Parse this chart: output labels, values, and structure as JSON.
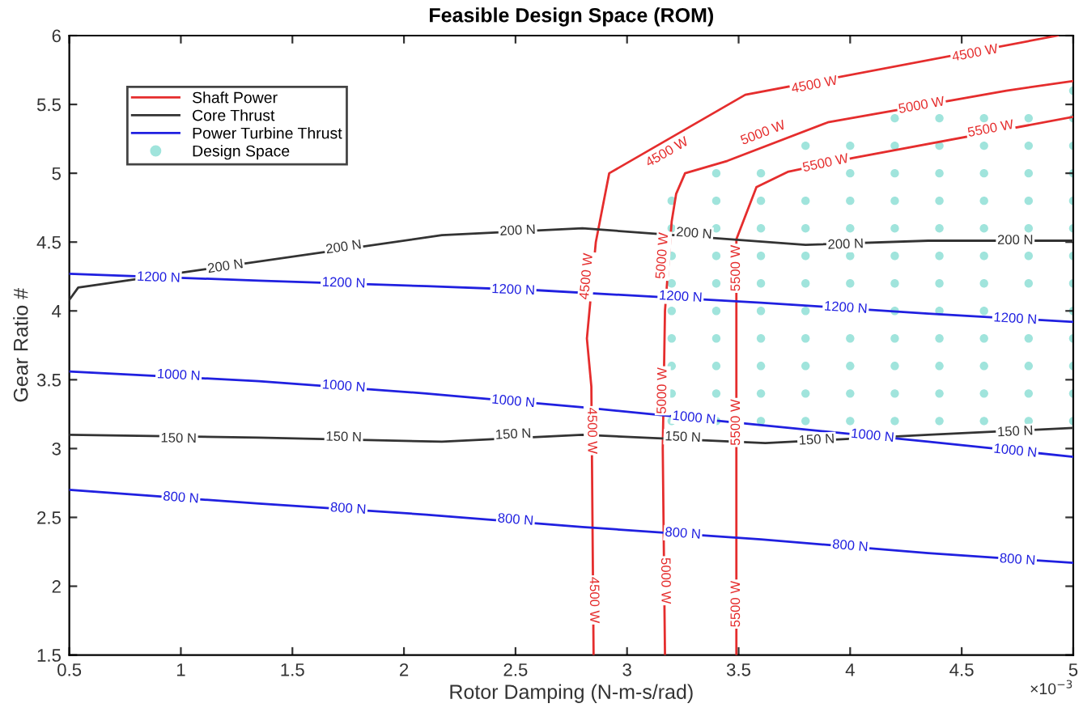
{
  "chart_data": {
    "type": "line",
    "title": "Feasible Design Space (ROM)",
    "xlabel": "Rotor Damping (N-m-s/rad)",
    "ylabel": "Gear Ratio #",
    "xlim": [
      0.5,
      5
    ],
    "ylim": [
      1.5,
      6
    ],
    "xticks": [
      0.5,
      1,
      1.5,
      2,
      2.5,
      3,
      3.5,
      4,
      4.5,
      5
    ],
    "yticks": [
      1.5,
      2,
      2.5,
      3,
      3.5,
      4,
      4.5,
      5,
      5.5,
      6
    ],
    "grid": false,
    "legend": "top left",
    "line_style": "solid",
    "series": [
      {
        "name": "Shaft Power",
        "color": "#e52d2d",
        "x": [
          2.85,
          2.84,
          2.82,
          2.86,
          2.92,
          3.53,
          4.93
        ],
        "values": [
          1.5,
          3.45,
          3.8,
          4.5,
          5.0,
          5.57,
          6.0
        ]
      },
      {
        "color": "#e52d2d",
        "x": [
          3.17,
          3.16,
          3.17,
          3.2,
          3.22,
          3.26,
          3.45,
          3.9,
          4.7,
          5
        ],
        "values": [
          1.5,
          3.0,
          4.0,
          4.65,
          4.85,
          5.0,
          5.09,
          5.37,
          5.6,
          5.67
        ]
      },
      {
        "color": "#e52d2d",
        "x": [
          3.49,
          3.49,
          3.49,
          3.58,
          3.72,
          4.01,
          5
        ],
        "values": [
          1.5,
          3.0,
          4.52,
          4.9,
          5.01,
          5.11,
          5.41
        ]
      },
      {
        "name": "Core Thrust",
        "color": "#333333",
        "x": [
          0.5,
          0.54,
          2.17,
          2.8,
          3.8,
          4.35,
          5
        ],
        "values": [
          4.08,
          4.17,
          4.55,
          4.6,
          4.48,
          4.51,
          4.51
        ]
      },
      {
        "color": "#333333",
        "x": [
          0.5,
          1.35,
          2.17,
          2.8,
          3.62,
          4.35,
          5
        ],
        "values": [
          3.1,
          3.08,
          3.05,
          3.1,
          3.04,
          3.1,
          3.15
        ]
      },
      {
        "name": "Power Turbine Thrust",
        "color": "#2020e0",
        "x": [
          0.5,
          1.35,
          2.1,
          2.6,
          3.6,
          4.35,
          5
        ],
        "values": [
          4.27,
          4.22,
          4.18,
          4.15,
          4.06,
          3.98,
          3.92
        ]
      },
      {
        "color": "#2020e0",
        "x": [
          0.5,
          1.35,
          2.1,
          2.8,
          3.6,
          4.35,
          5
        ],
        "values": [
          3.56,
          3.49,
          3.4,
          3.3,
          3.17,
          3.05,
          2.94
        ]
      },
      {
        "color": "#2020e0",
        "x": [
          0.5,
          1.35,
          2.1,
          2.8,
          3.6,
          4.35,
          5
        ],
        "values": [
          2.7,
          2.6,
          2.52,
          2.43,
          2.34,
          2.24,
          2.17
        ]
      },
      {
        "name": "Design Space",
        "type": "scatter",
        "marker": "circle",
        "color": "#a0e4dc",
        "x": [
          3.2,
          3.2,
          3.2,
          3.2,
          3.2,
          3.2,
          3.2,
          3.2,
          3.2,
          3.4,
          3.4,
          3.4,
          3.4,
          3.4,
          3.4,
          3.4,
          3.4,
          3.4,
          3.4,
          3.6,
          3.6,
          3.6,
          3.6,
          3.6,
          3.6,
          3.6,
          3.6,
          3.6,
          3.6,
          3.8,
          3.8,
          3.8,
          3.8,
          3.8,
          3.8,
          3.8,
          3.8,
          3.8,
          3.8,
          4.0,
          4.0,
          4.0,
          4.0,
          4.0,
          4.0,
          4.0,
          4.0,
          4.0,
          4.0,
          4.2,
          4.2,
          4.2,
          4.2,
          4.2,
          4.2,
          4.2,
          4.2,
          4.2,
          4.2,
          4.2,
          4.2,
          4.4,
          4.4,
          4.4,
          4.4,
          4.4,
          4.4,
          4.4,
          4.4,
          4.4,
          4.4,
          4.4,
          4.4,
          4.6,
          4.6,
          4.6,
          4.6,
          4.6,
          4.6,
          4.6,
          4.6,
          4.6,
          4.6,
          4.6,
          4.6,
          4.8,
          4.8,
          4.8,
          4.8,
          4.8,
          4.8,
          4.8,
          4.8,
          4.8,
          4.8,
          4.8,
          5.0,
          5.0,
          5.0,
          5.0,
          5.0,
          5.0,
          5.0,
          5.0,
          5.0,
          5.0,
          5.0,
          5.0,
          5.0
        ],
        "values": [
          3.2,
          3.4,
          3.6,
          3.8,
          4.0,
          4.2,
          4.4,
          4.6,
          4.8,
          3.2,
          3.4,
          3.6,
          3.8,
          4.0,
          4.2,
          4.4,
          4.6,
          4.8,
          5.0,
          3.2,
          3.4,
          3.6,
          3.8,
          4.0,
          4.2,
          4.4,
          4.6,
          4.8,
          5.0,
          3.2,
          3.4,
          3.6,
          3.8,
          4.0,
          4.2,
          4.4,
          4.6,
          4.8,
          5.2,
          3.2,
          3.4,
          3.6,
          3.8,
          4.2,
          4.4,
          4.6,
          4.8,
          5.0,
          5.2,
          3.2,
          3.4,
          3.6,
          3.8,
          4.0,
          4.2,
          4.4,
          4.6,
          4.8,
          5.0,
          5.2,
          5.4,
          3.2,
          3.4,
          3.6,
          3.8,
          4.0,
          4.2,
          4.4,
          4.6,
          4.8,
          5.0,
          5.2,
          5.4,
          3.2,
          3.4,
          3.6,
          3.8,
          4.0,
          4.2,
          4.4,
          4.6,
          4.8,
          5.0,
          5.2,
          5.4,
          3.2,
          3.4,
          3.6,
          3.8,
          4.2,
          4.4,
          4.6,
          4.8,
          5.0,
          5.2,
          5.4,
          3.2,
          3.4,
          3.6,
          3.8,
          4.0,
          4.2,
          4.4,
          4.6,
          4.8,
          5.0,
          5.2,
          5.4,
          5.6
        ]
      }
    ],
    "annotations": [
      {
        "text": "4500 W",
        "x": 2.85,
        "y": 1.9
      },
      {
        "text": "4500 W",
        "x": 2.84,
        "y": 3.13
      },
      {
        "text": "4500 W",
        "x": 2.82,
        "y": 4.25
      },
      {
        "text": "4500 W",
        "x": 3.18,
        "y": 5.15
      },
      {
        "text": "4500 W",
        "x": 3.84,
        "y": 5.64
      },
      {
        "text": "4500 W",
        "x": 4.56,
        "y": 5.87
      },
      {
        "text": "5000 W",
        "x": 3.17,
        "y": 2.04
      },
      {
        "text": "5000 W",
        "x": 3.16,
        "y": 3.42
      },
      {
        "text": "5000 W",
        "x": 3.16,
        "y": 4.4
      },
      {
        "text": "5000 W",
        "x": 3.61,
        "y": 5.29
      },
      {
        "text": "5000 W",
        "x": 4.32,
        "y": 5.49
      },
      {
        "text": "5500 W",
        "x": 3.49,
        "y": 1.87
      },
      {
        "text": "5500 W",
        "x": 3.49,
        "y": 3.19
      },
      {
        "text": "5500 W",
        "x": 3.49,
        "y": 4.31
      },
      {
        "text": "5500 W",
        "x": 3.89,
        "y": 5.07
      },
      {
        "text": "5500 W",
        "x": 4.63,
        "y": 5.32
      },
      {
        "text": "200 N",
        "x": 1.2,
        "y": 4.32
      },
      {
        "text": "200 N",
        "x": 1.73,
        "y": 4.46
      },
      {
        "text": "200 N",
        "x": 2.51,
        "y": 4.58
      },
      {
        "text": "200 N",
        "x": 3.3,
        "y": 4.56
      },
      {
        "text": "200 N",
        "x": 3.98,
        "y": 4.48
      },
      {
        "text": "200 N",
        "x": 4.74,
        "y": 4.51
      },
      {
        "text": "150 N",
        "x": 0.99,
        "y": 3.07
      },
      {
        "text": "150 N",
        "x": 1.73,
        "y": 3.08
      },
      {
        "text": "150 N",
        "x": 2.49,
        "y": 3.1
      },
      {
        "text": "150 N",
        "x": 3.25,
        "y": 3.08
      },
      {
        "text": "150 N",
        "x": 3.85,
        "y": 3.06
      },
      {
        "text": "150 N",
        "x": 4.74,
        "y": 3.12
      },
      {
        "text": "1200 N",
        "x": 0.9,
        "y": 4.24
      },
      {
        "text": "1200 N",
        "x": 1.73,
        "y": 4.2
      },
      {
        "text": "1200 N",
        "x": 2.49,
        "y": 4.15
      },
      {
        "text": "1200 N",
        "x": 3.24,
        "y": 4.1
      },
      {
        "text": "1200 N",
        "x": 3.98,
        "y": 4.02
      },
      {
        "text": "1200 N",
        "x": 4.74,
        "y": 3.94
      },
      {
        "text": "1000 N",
        "x": 0.99,
        "y": 3.53
      },
      {
        "text": "1000 N",
        "x": 1.73,
        "y": 3.45
      },
      {
        "text": "1000 N",
        "x": 2.49,
        "y": 3.34
      },
      {
        "text": "1000 N",
        "x": 3.3,
        "y": 3.22
      },
      {
        "text": "1000 N",
        "x": 4.1,
        "y": 3.09
      },
      {
        "text": "1000 N",
        "x": 4.74,
        "y": 2.98
      },
      {
        "text": "800 N",
        "x": 1.0,
        "y": 2.64
      },
      {
        "text": "800 N",
        "x": 1.75,
        "y": 2.56
      },
      {
        "text": "800 N",
        "x": 2.5,
        "y": 2.48
      },
      {
        "text": "800 N",
        "x": 3.25,
        "y": 2.38
      },
      {
        "text": "800 N",
        "x": 4.0,
        "y": 2.29
      },
      {
        "text": "800 N",
        "x": 4.75,
        "y": 2.19
      },
      "×10$^{−3}$"
    ]
  }
}
